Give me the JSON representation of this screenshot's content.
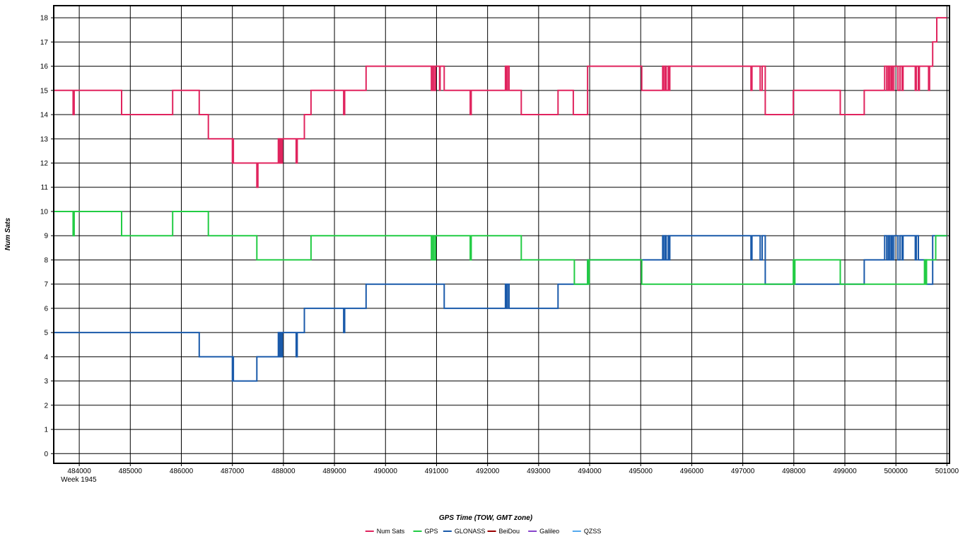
{
  "chart_data": {
    "type": "line",
    "step": true,
    "xlabel": "GPS Time (TOW, GMT zone)",
    "ylabel": "Num Sats",
    "xlim": [
      483500,
      501050
    ],
    "ylim": [
      -0.4,
      18.5
    ],
    "x_ticks": [
      484000,
      485000,
      486000,
      487000,
      488000,
      489000,
      490000,
      491000,
      492000,
      493000,
      494000,
      495000,
      496000,
      497000,
      498000,
      499000,
      500000,
      501000
    ],
    "x_tick_labels": [
      "484000",
      "485000",
      "486000",
      "487000",
      "488000",
      "489000",
      "490000",
      "491000",
      "492000",
      "493000",
      "494000",
      "495000",
      "496000",
      "497000",
      "498000",
      "499000",
      "500000",
      "501000"
    ],
    "x_sub_label": "Week 1945",
    "y_ticks": [
      0,
      1,
      2,
      3,
      4,
      5,
      6,
      7,
      8,
      9,
      10,
      11,
      12,
      13,
      14,
      15,
      16,
      17,
      18
    ],
    "y_tick_labels": [
      "0",
      "1",
      "2",
      "3",
      "4",
      "5",
      "6",
      "7",
      "8",
      "9",
      "10",
      "11",
      "12",
      "13",
      "14",
      "15",
      "16",
      "17",
      "18"
    ],
    "grid": true,
    "legend_position": "bottom-center",
    "series": [
      {
        "name": "Num Sats",
        "color": "#e0245e",
        "points": [
          [
            483500,
            15
          ],
          [
            483880,
            14
          ],
          [
            483900,
            15
          ],
          [
            484830,
            14
          ],
          [
            485830,
            15
          ],
          [
            486350,
            14
          ],
          [
            486530,
            13
          ],
          [
            487000,
            12
          ],
          [
            487010,
            13
          ],
          [
            487020,
            12
          ],
          [
            487480,
            11
          ],
          [
            487500,
            12
          ],
          [
            487900,
            13
          ],
          [
            487920,
            12
          ],
          [
            487940,
            13
          ],
          [
            487960,
            12
          ],
          [
            487980,
            13
          ],
          [
            488250,
            12
          ],
          [
            488270,
            13
          ],
          [
            488410,
            14
          ],
          [
            488540,
            15
          ],
          [
            489180,
            14
          ],
          [
            489200,
            15
          ],
          [
            489620,
            16
          ],
          [
            490900,
            15
          ],
          [
            490920,
            16
          ],
          [
            490950,
            15
          ],
          [
            490980,
            16
          ],
          [
            491060,
            15
          ],
          [
            491070,
            16
          ],
          [
            491150,
            15
          ],
          [
            491660,
            14
          ],
          [
            491680,
            15
          ],
          [
            492350,
            16
          ],
          [
            492370,
            15
          ],
          [
            492390,
            16
          ],
          [
            492420,
            15
          ],
          [
            492660,
            14
          ],
          [
            493380,
            15
          ],
          [
            493680,
            14
          ],
          [
            493700,
            14
          ],
          [
            493960,
            16
          ],
          [
            495020,
            15
          ],
          [
            495430,
            16
          ],
          [
            495450,
            15
          ],
          [
            495480,
            16
          ],
          [
            495500,
            15
          ],
          [
            495540,
            16
          ],
          [
            495560,
            15
          ],
          [
            495570,
            16
          ],
          [
            497160,
            15
          ],
          [
            497180,
            16
          ],
          [
            497340,
            15
          ],
          [
            497380,
            16
          ],
          [
            497440,
            14
          ],
          [
            497990,
            15
          ],
          [
            498910,
            14
          ],
          [
            499380,
            15
          ],
          [
            499780,
            16
          ],
          [
            499820,
            15
          ],
          [
            499850,
            16
          ],
          [
            499880,
            15
          ],
          [
            499910,
            16
          ],
          [
            499930,
            15
          ],
          [
            499960,
            16
          ],
          [
            500040,
            15
          ],
          [
            500080,
            16
          ],
          [
            500120,
            15
          ],
          [
            500140,
            16
          ],
          [
            500380,
            15
          ],
          [
            500400,
            16
          ],
          [
            500440,
            15
          ],
          [
            500460,
            16
          ],
          [
            500640,
            15
          ],
          [
            500660,
            16
          ],
          [
            500720,
            17
          ],
          [
            500800,
            18
          ],
          [
            501000,
            18
          ]
        ]
      },
      {
        "name": "GPS",
        "color": "#22cc44",
        "points": [
          [
            483500,
            10
          ],
          [
            483880,
            9
          ],
          [
            483900,
            10
          ],
          [
            484830,
            9
          ],
          [
            485830,
            10
          ],
          [
            486530,
            9
          ],
          [
            487480,
            8
          ],
          [
            488540,
            9
          ],
          [
            490900,
            8
          ],
          [
            490920,
            9
          ],
          [
            490950,
            8
          ],
          [
            490980,
            9
          ],
          [
            491660,
            8
          ],
          [
            491680,
            9
          ],
          [
            492660,
            8
          ],
          [
            493700,
            7
          ],
          [
            493960,
            8
          ],
          [
            493970,
            7
          ],
          [
            493990,
            8
          ],
          [
            495020,
            7
          ],
          [
            497990,
            8
          ],
          [
            498000,
            7
          ],
          [
            498020,
            8
          ],
          [
            498910,
            7
          ],
          [
            500560,
            8
          ],
          [
            500580,
            7
          ],
          [
            500600,
            8
          ],
          [
            500780,
            9
          ],
          [
            501000,
            9
          ]
        ]
      },
      {
        "name": "GLONASS",
        "color": "#1a5aaa",
        "points": [
          [
            483500,
            5
          ],
          [
            486350,
            4
          ],
          [
            487000,
            3
          ],
          [
            487010,
            4
          ],
          [
            487020,
            3
          ],
          [
            487480,
            4
          ],
          [
            487900,
            5
          ],
          [
            487920,
            4
          ],
          [
            487940,
            5
          ],
          [
            487960,
            4
          ],
          [
            487980,
            5
          ],
          [
            488250,
            4
          ],
          [
            488270,
            5
          ],
          [
            488410,
            6
          ],
          [
            489180,
            5
          ],
          [
            489200,
            6
          ],
          [
            489620,
            7
          ],
          [
            491150,
            6
          ],
          [
            492350,
            7
          ],
          [
            492370,
            6
          ],
          [
            492390,
            7
          ],
          [
            492420,
            6
          ],
          [
            493380,
            7
          ],
          [
            493700,
            7
          ],
          [
            493960,
            8
          ],
          [
            495020,
            8
          ],
          [
            495430,
            9
          ],
          [
            495450,
            8
          ],
          [
            495480,
            9
          ],
          [
            495500,
            8
          ],
          [
            495540,
            9
          ],
          [
            495560,
            8
          ],
          [
            495570,
            9
          ],
          [
            497160,
            8
          ],
          [
            497180,
            9
          ],
          [
            497340,
            8
          ],
          [
            497380,
            9
          ],
          [
            497440,
            7
          ],
          [
            497990,
            7
          ],
          [
            499380,
            8
          ],
          [
            499780,
            9
          ],
          [
            499820,
            8
          ],
          [
            499850,
            9
          ],
          [
            499880,
            8
          ],
          [
            499910,
            9
          ],
          [
            499930,
            8
          ],
          [
            499960,
            9
          ],
          [
            500040,
            8
          ],
          [
            500080,
            9
          ],
          [
            500120,
            8
          ],
          [
            500140,
            9
          ],
          [
            500380,
            8
          ],
          [
            500400,
            9
          ],
          [
            500440,
            8
          ],
          [
            500600,
            7
          ],
          [
            500660,
            7
          ],
          [
            500720,
            9
          ],
          [
            501000,
            9
          ]
        ]
      },
      {
        "name": "BeiDou",
        "color": "#990000",
        "points": []
      },
      {
        "name": "Galileo",
        "color": "#8844cc",
        "points": []
      },
      {
        "name": "QZSS",
        "color": "#55aaee",
        "points": []
      }
    ]
  }
}
